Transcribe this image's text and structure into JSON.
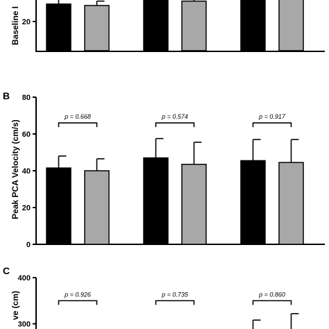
{
  "colors": {
    "series1": "#000000",
    "series2": "#a8a8a8"
  },
  "chart_data": [
    {
      "panel": "",
      "type": "bar",
      "ylabel": "Baseline I",
      "ylim": [
        0,
        40
      ],
      "yticks": [
        20
      ],
      "series": [
        {
          "values": [
            32,
            38,
            38
          ],
          "errors": [
            6,
            4,
            4
          ]
        },
        {
          "values": [
            31,
            34,
            36
          ],
          "errors": [
            3,
            4,
            4
          ]
        }
      ]
    },
    {
      "panel": "B",
      "type": "bar",
      "ylabel": "Peak PCA Velocity (cm/s)",
      "ylim": [
        0,
        80
      ],
      "yticks": [
        0,
        20,
        40,
        60,
        80
      ],
      "series": [
        {
          "values": [
            41.5,
            47,
            45.5
          ],
          "errors": [
            6.5,
            10.5,
            11.5
          ]
        },
        {
          "values": [
            40,
            43.5,
            44.5
          ],
          "errors": [
            6.5,
            12,
            12.5
          ]
        }
      ],
      "pvalues": [
        "p = 0.668",
        "p = 0.574",
        "p = 0.917"
      ],
      "bracket_y": 66
    },
    {
      "panel": "C",
      "type": "bar",
      "ylabel": "ve (cm)",
      "ylim": [
        0,
        400
      ],
      "yticks": [
        300,
        400
      ],
      "series": [
        {
          "values": [
            0,
            0,
            0
          ],
          "errors": [
            0,
            270,
            308
          ]
        },
        {
          "values": [
            0,
            0,
            0
          ],
          "errors": [
            0,
            280,
            322
          ]
        }
      ],
      "pvalues": [
        "p = 0.926",
        "p = 0.735",
        "p = 0.860"
      ],
      "bracket_y": 350
    }
  ]
}
